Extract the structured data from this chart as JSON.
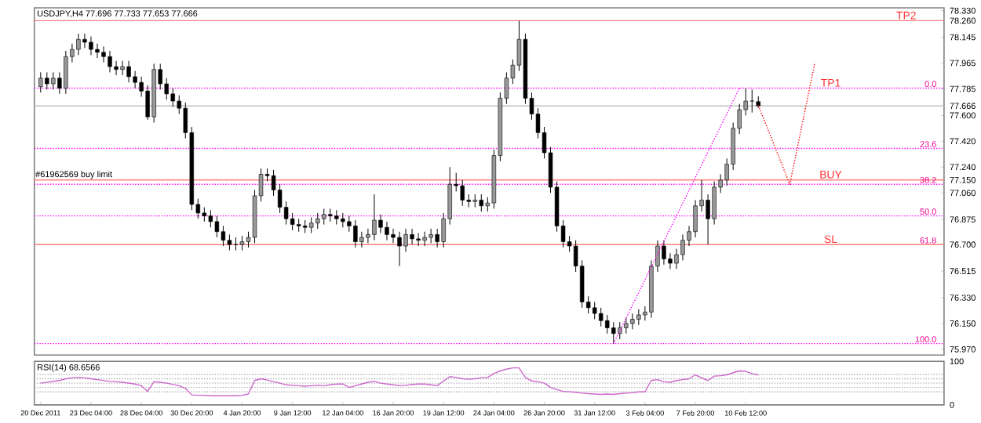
{
  "chart_data": [
    {
      "type": "candlestick",
      "title": "USDJPY,H4 77.696 77.733 77.653 77.666",
      "tick_labels": "y",
      "color": "#000000",
      "categories": [
        null,
        null,
        null,
        null,
        null,
        null,
        null,
        null,
        null,
        null,
        null,
        null,
        null,
        null,
        null,
        null,
        null,
        null,
        null,
        null,
        null,
        null,
        null,
        null,
        null,
        null,
        null,
        null,
        null,
        null,
        null,
        null,
        null,
        null,
        null,
        null,
        null,
        null,
        null,
        null,
        null,
        null,
        null,
        null,
        null,
        null,
        null,
        null,
        null,
        null,
        null,
        null,
        null,
        null,
        null,
        null,
        null,
        null,
        null,
        null,
        null,
        null,
        null,
        null,
        null,
        null,
        null,
        null,
        null,
        null,
        null,
        null,
        null,
        null,
        null,
        null,
        null,
        null,
        null,
        null,
        null,
        null,
        null,
        null,
        null,
        null,
        null,
        null,
        null,
        null,
        null,
        null,
        null,
        null,
        null,
        null,
        null,
        null,
        null,
        null,
        null,
        null,
        null,
        null,
        null,
        null,
        null,
        null,
        null,
        null,
        null,
        null,
        null,
        null,
        null,
        null,
        null,
        null,
        null,
        null,
        null,
        null,
        null,
        null,
        null,
        null,
        null,
        null,
        null,
        null,
        null,
        null,
        null,
        null,
        null,
        null,
        null,
        null,
        null,
        null,
        null,
        null,
        null,
        null
      ],
      "ohlc": [
        [
          77.8,
          77.9,
          77.76,
          77.86
        ],
        [
          77.86,
          77.9,
          77.78,
          77.82
        ],
        [
          77.82,
          77.9,
          77.78,
          77.86
        ],
        [
          77.86,
          77.9,
          77.75,
          77.79
        ],
        [
          77.79,
          78.05,
          77.75,
          78.01
        ],
        [
          78.01,
          78.1,
          77.97,
          78.06
        ],
        [
          78.06,
          78.17,
          78.02,
          78.13
        ],
        [
          78.13,
          78.17,
          78.07,
          78.11
        ],
        [
          78.11,
          78.15,
          78.02,
          78.06
        ],
        [
          78.06,
          78.1,
          78.0,
          78.04
        ],
        [
          78.04,
          78.08,
          77.97,
          78.01
        ],
        [
          78.01,
          78.05,
          77.9,
          77.94
        ],
        [
          77.94,
          77.98,
          77.88,
          77.92
        ],
        [
          77.92,
          77.98,
          77.88,
          77.94
        ],
        [
          77.94,
          77.98,
          77.83,
          77.87
        ],
        [
          77.87,
          77.91,
          77.79,
          77.83
        ],
        [
          77.83,
          77.87,
          77.73,
          77.77
        ],
        [
          77.77,
          77.81,
          77.57,
          77.59
        ],
        [
          77.59,
          77.96,
          77.55,
          77.92
        ],
        [
          77.92,
          77.96,
          77.78,
          77.82
        ],
        [
          77.82,
          77.86,
          77.71,
          77.75
        ],
        [
          77.75,
          77.79,
          77.66,
          77.7
        ],
        [
          77.7,
          77.74,
          77.61,
          77.65
        ],
        [
          77.65,
          77.69,
          77.44,
          77.48
        ],
        [
          77.48,
          77.52,
          76.94,
          76.98
        ],
        [
          76.98,
          77.02,
          76.88,
          76.92
        ],
        [
          76.92,
          76.96,
          76.86,
          76.9
        ],
        [
          76.9,
          76.94,
          76.82,
          76.86
        ],
        [
          76.86,
          76.9,
          76.75,
          76.79
        ],
        [
          76.79,
          76.83,
          76.69,
          76.73
        ],
        [
          76.73,
          76.77,
          76.66,
          76.7
        ],
        [
          76.7,
          76.75,
          76.66,
          76.7
        ],
        [
          76.7,
          76.76,
          76.66,
          76.72
        ],
        [
          76.72,
          76.79,
          76.68,
          76.75
        ],
        [
          76.75,
          77.08,
          76.71,
          77.04
        ],
        [
          77.04,
          77.23,
          77.0,
          77.19
        ],
        [
          77.19,
          77.23,
          77.14,
          77.18
        ],
        [
          77.18,
          77.22,
          77.04,
          77.08
        ],
        [
          77.08,
          77.12,
          76.92,
          76.96
        ],
        [
          76.96,
          77.0,
          76.84,
          76.88
        ],
        [
          76.88,
          76.92,
          76.8,
          76.84
        ],
        [
          76.84,
          76.88,
          76.79,
          76.83
        ],
        [
          76.83,
          76.87,
          76.78,
          76.82
        ],
        [
          76.82,
          76.89,
          76.78,
          76.85
        ],
        [
          76.85,
          76.92,
          76.81,
          76.88
        ],
        [
          76.88,
          76.95,
          76.84,
          76.91
        ],
        [
          76.91,
          76.95,
          76.86,
          76.9
        ],
        [
          76.9,
          76.94,
          76.84,
          76.88
        ],
        [
          76.88,
          76.92,
          76.82,
          76.86
        ],
        [
          76.86,
          76.9,
          76.79,
          76.83
        ],
        [
          76.83,
          76.87,
          76.68,
          76.72
        ],
        [
          76.72,
          76.79,
          76.68,
          76.75
        ],
        [
          76.75,
          76.81,
          76.71,
          76.77
        ],
        [
          76.77,
          77.05,
          76.73,
          76.87
        ],
        [
          76.87,
          76.91,
          76.78,
          76.82
        ],
        [
          76.82,
          76.86,
          76.73,
          76.77
        ],
        [
          76.77,
          76.81,
          76.71,
          76.75
        ],
        [
          76.75,
          76.79,
          76.55,
          76.69
        ],
        [
          76.69,
          76.81,
          76.65,
          76.77
        ],
        [
          76.77,
          76.81,
          76.7,
          76.74
        ],
        [
          76.74,
          76.78,
          76.69,
          76.73
        ],
        [
          76.73,
          76.79,
          76.69,
          76.75
        ],
        [
          76.75,
          76.81,
          76.71,
          76.77
        ],
        [
          76.77,
          76.81,
          76.68,
          76.72
        ],
        [
          76.72,
          76.92,
          76.68,
          76.88
        ],
        [
          76.88,
          77.24,
          76.84,
          77.12
        ],
        [
          77.12,
          77.2,
          77.07,
          77.11
        ],
        [
          77.11,
          77.15,
          76.97,
          77.01
        ],
        [
          77.01,
          77.05,
          76.96,
          77.0
        ],
        [
          77.0,
          77.05,
          76.96,
          77.01
        ],
        [
          77.01,
          77.05,
          76.93,
          76.97
        ],
        [
          76.97,
          77.03,
          76.93,
          76.99
        ],
        [
          76.99,
          77.36,
          76.95,
          77.32
        ],
        [
          77.32,
          77.76,
          77.28,
          77.72
        ],
        [
          77.72,
          77.9,
          77.68,
          77.86
        ],
        [
          77.86,
          77.99,
          77.82,
          77.95
        ],
        [
          77.95,
          78.26,
          77.91,
          78.13
        ],
        [
          78.13,
          78.17,
          77.68,
          77.72
        ],
        [
          77.72,
          77.76,
          77.57,
          77.61
        ],
        [
          77.61,
          77.65,
          77.44,
          77.48
        ],
        [
          77.48,
          77.52,
          77.3,
          77.34
        ],
        [
          77.34,
          77.38,
          77.06,
          77.1
        ],
        [
          77.1,
          77.14,
          76.79,
          76.83
        ],
        [
          76.83,
          76.87,
          76.68,
          76.72
        ],
        [
          76.72,
          76.76,
          76.65,
          76.69
        ],
        [
          76.69,
          76.73,
          76.51,
          76.55
        ],
        [
          76.55,
          76.59,
          76.26,
          76.3
        ],
        [
          76.3,
          76.34,
          76.22,
          76.26
        ],
        [
          76.26,
          76.3,
          76.18,
          76.22
        ],
        [
          76.22,
          76.26,
          76.13,
          76.17
        ],
        [
          76.17,
          76.21,
          76.08,
          76.12
        ],
        [
          76.12,
          76.16,
          76.01,
          76.08
        ],
        [
          76.08,
          76.16,
          76.04,
          76.12
        ],
        [
          76.12,
          76.19,
          76.08,
          76.15
        ],
        [
          76.15,
          76.22,
          76.11,
          76.18
        ],
        [
          76.18,
          76.25,
          76.14,
          76.21
        ],
        [
          76.21,
          76.27,
          76.17,
          76.23
        ],
        [
          76.23,
          76.59,
          76.19,
          76.55
        ],
        [
          76.55,
          76.73,
          76.51,
          76.69
        ],
        [
          76.69,
          76.73,
          76.56,
          76.6
        ],
        [
          76.6,
          76.64,
          76.53,
          76.57
        ],
        [
          76.57,
          76.67,
          76.53,
          76.63
        ],
        [
          76.63,
          76.77,
          76.59,
          76.73
        ],
        [
          76.73,
          76.83,
          76.69,
          76.79
        ],
        [
          76.79,
          77.01,
          76.75,
          76.97
        ],
        [
          76.97,
          77.15,
          76.93,
          77.01
        ],
        [
          77.01,
          77.05,
          76.7,
          76.88
        ],
        [
          76.88,
          77.14,
          76.84,
          77.1
        ],
        [
          77.1,
          77.19,
          77.06,
          77.15
        ],
        [
          77.15,
          77.3,
          77.11,
          77.26
        ],
        [
          77.26,
          77.55,
          77.22,
          77.51
        ],
        [
          77.51,
          77.68,
          77.47,
          77.64
        ],
        [
          77.64,
          77.79,
          77.6,
          77.7
        ],
        [
          77.7,
          77.78,
          77.62,
          77.7
        ],
        [
          77.696,
          77.733,
          77.653,
          77.666
        ],
        null,
        null,
        null,
        null,
        null,
        null,
        null,
        null,
        null,
        null,
        null,
        null,
        null,
        null,
        null,
        null,
        null,
        null,
        null,
        null,
        null,
        null,
        null,
        null,
        null,
        null,
        null,
        null,
        null
      ],
      "ylim": [
        75.93,
        78.35
      ],
      "yticks": [
        {
          "value": 75.97,
          "label": "75.970"
        },
        {
          "value": 76.15,
          "label": "76.150"
        },
        {
          "value": 76.33,
          "label": "76.330"
        },
        {
          "value": 76.515,
          "label": "76.515"
        },
        {
          "value": 76.7,
          "label": "76.700"
        },
        {
          "value": 76.875,
          "label": "76.875"
        },
        {
          "value": 77.06,
          "label": "77.060"
        },
        {
          "value": 77.15,
          "label": "77.150"
        },
        {
          "value": 77.24,
          "label": "77.240"
        },
        {
          "value": 77.42,
          "label": "77.420"
        },
        {
          "value": 77.6,
          "label": "77.600"
        },
        {
          "value": 77.666,
          "label": "77.666"
        },
        {
          "value": 77.785,
          "label": "77.785"
        },
        {
          "value": 77.965,
          "label": "77.965"
        },
        {
          "value": 78.145,
          "label": "78.145"
        },
        {
          "value": 78.26,
          "label": "78.260"
        },
        {
          "value": 78.33,
          "label": "78.330"
        }
      ],
      "ref_lines": [
        {
          "axis": "y",
          "value": 78.26,
          "color": "#ff8080"
        },
        {
          "axis": "y",
          "value": 77.15,
          "label": "#61962569 buy limit",
          "color": "#ff8080"
        },
        {
          "axis": "y",
          "value": 76.7,
          "color": "#ff8080"
        },
        {
          "axis": "y",
          "value": 77.666,
          "color": "#c0c0c0"
        },
        {
          "axis": "y",
          "value": 77.79,
          "color": "#ff00ff",
          "line_style": "dotted"
        },
        {
          "axis": "y",
          "value": 77.37,
          "color": "#ff00ff",
          "line_style": "dotted"
        },
        {
          "axis": "y",
          "value": 77.12,
          "color": "#ff00ff",
          "line_style": "dotted"
        },
        {
          "axis": "y",
          "value": 76.9,
          "color": "#ff00ff",
          "line_style": "dotted"
        },
        {
          "axis": "y",
          "value": 76.01,
          "color": "#ff00ff",
          "line_style": "dotted"
        }
      ],
      "annotations": [
        {
          "text": "TP2",
          "y": 78.26
        },
        {
          "text": "TP1",
          "y": 77.79
        },
        {
          "text": "BUY",
          "y": 77.15
        },
        {
          "text": "SL",
          "y": 76.7
        },
        {
          "text": "0.0",
          "y": 77.79
        },
        {
          "text": "23.6",
          "y": 77.37
        },
        {
          "text": "38.2",
          "y": 77.12
        },
        {
          "text": "50.0",
          "y": 76.9
        },
        {
          "text": "61.8",
          "y": 76.7
        },
        {
          "text": "100.0",
          "y": 76.01
        }
      ],
      "series": [
        {
          "type": "line",
          "values": [
            null,
            null,
            null,
            null,
            null,
            null,
            null,
            null,
            null,
            null,
            null,
            null,
            null,
            null,
            null,
            null,
            null,
            null,
            null,
            null,
            null,
            null,
            null,
            null,
            null,
            null,
            null,
            null,
            null,
            null,
            null,
            null,
            null,
            null,
            null,
            null,
            null,
            null,
            null,
            null,
            null,
            null,
            null,
            null,
            null,
            null,
            null,
            null,
            null,
            null,
            null,
            null,
            null,
            null,
            null,
            null,
            null,
            null,
            null,
            null,
            null,
            null,
            null,
            null,
            null,
            null,
            null,
            null,
            null,
            null,
            null,
            null,
            null,
            null,
            null,
            null,
            null,
            null,
            null,
            null,
            null,
            null,
            null,
            null,
            null,
            null,
            null,
            null,
            null,
            null,
            null,
            76.01,
            null,
            null,
            null,
            null,
            null,
            null,
            null,
            null,
            null,
            null,
            null,
            null,
            null,
            null,
            null,
            null,
            null,
            null,
            null,
            77.79,
            null,
            null,
            null,
            null,
            null,
            null,
            null,
            null,
            null,
            null,
            null,
            null,
            null,
            null,
            null,
            null,
            null,
            null,
            null,
            null,
            null,
            null,
            null,
            null,
            null,
            null,
            null,
            null,
            null,
            null,
            null,
            null
          ],
          "color": "#ff00ff",
          "line_style": "dotted"
        },
        {
          "type": "line",
          "values": [
            null,
            null,
            null,
            null,
            null,
            null,
            null,
            null,
            null,
            null,
            null,
            null,
            null,
            null,
            null,
            null,
            null,
            null,
            null,
            null,
            null,
            null,
            null,
            null,
            null,
            null,
            null,
            null,
            null,
            null,
            null,
            null,
            null,
            null,
            null,
            null,
            null,
            null,
            null,
            null,
            null,
            null,
            null,
            null,
            null,
            null,
            null,
            null,
            null,
            null,
            null,
            null,
            null,
            null,
            null,
            null,
            null,
            null,
            null,
            null,
            null,
            null,
            null,
            null,
            null,
            null,
            null,
            null,
            null,
            null,
            null,
            null,
            null,
            null,
            null,
            null,
            null,
            null,
            null,
            null,
            null,
            null,
            null,
            null,
            null,
            null,
            null,
            null,
            null,
            null,
            null,
            null,
            null,
            null,
            null,
            null,
            null,
            null,
            null,
            null,
            null,
            null,
            null,
            null,
            null,
            null,
            null,
            null,
            null,
            null,
            null,
            null,
            null,
            null,
            77.67,
            null,
            null,
            null,
            null,
            77.12,
            null,
            null,
            null,
            77.97,
            null,
            null,
            null,
            null,
            null,
            null,
            null,
            null,
            null,
            null,
            null,
            null,
            null,
            null,
            null,
            null,
            null,
            null,
            null,
            null
          ],
          "color": "#ff0000",
          "line_style": "dotted"
        }
      ]
    },
    {
      "type": "line",
      "title": "RSI(14) 68.6566",
      "categories": [
        "20 Dec 2011",
        null,
        null,
        null,
        null,
        null,
        null,
        null,
        "23 Dec 04:00",
        null,
        null,
        null,
        null,
        null,
        null,
        null,
        "28 Dec 04:00",
        null,
        null,
        null,
        null,
        null,
        null,
        null,
        "30 Dec 20:00",
        null,
        null,
        null,
        null,
        null,
        null,
        null,
        "4 Jan 20:00",
        null,
        null,
        null,
        null,
        null,
        null,
        null,
        "9 Jan 12:00",
        null,
        null,
        null,
        null,
        null,
        null,
        null,
        "12 Jan 04:00",
        null,
        null,
        null,
        null,
        null,
        null,
        null,
        "16 Jan 20:00",
        null,
        null,
        null,
        null,
        null,
        null,
        null,
        "19 Jan 12:00",
        null,
        null,
        null,
        null,
        null,
        null,
        null,
        "24 Jan 04:00",
        null,
        null,
        null,
        null,
        null,
        null,
        null,
        "26 Jan 20:00",
        null,
        null,
        null,
        null,
        null,
        null,
        null,
        "31 Jan 12:00",
        null,
        null,
        null,
        null,
        null,
        null,
        null,
        "3 Feb 04:00",
        null,
        null,
        null,
        null,
        null,
        null,
        null,
        "7 Feb 20:00",
        null,
        null,
        null,
        null,
        null,
        null,
        null,
        "10 Feb 12:00",
        null,
        null,
        null,
        null,
        null,
        null,
        null,
        null,
        null,
        null,
        null,
        null,
        null,
        null,
        null,
        null,
        null,
        null,
        null,
        null,
        null,
        null,
        null,
        null,
        null,
        null,
        null,
        null,
        null,
        null,
        null
      ],
      "series": [
        {
          "color": "#cc66cc",
          "values": [
            50,
            52,
            54,
            56,
            60,
            62,
            63,
            62,
            60,
            58,
            56,
            54,
            53,
            52,
            50,
            48,
            44,
            31,
            53,
            52,
            50,
            47,
            44,
            38,
            23,
            22,
            22,
            21,
            21,
            21,
            21,
            21,
            22,
            25,
            56,
            60,
            57,
            53,
            50,
            46,
            45,
            44,
            43,
            44,
            45,
            44,
            46,
            48,
            48,
            40,
            44,
            48,
            52,
            54,
            50,
            48,
            46,
            44,
            45,
            47,
            48,
            48,
            46,
            44,
            55,
            65,
            63,
            60,
            59,
            60,
            62,
            63,
            72,
            78,
            82,
            85,
            85,
            63,
            55,
            53,
            50,
            40,
            35,
            31,
            30,
            29,
            27,
            26,
            25,
            24,
            25,
            24,
            26,
            27,
            28,
            30,
            30,
            56,
            58,
            53,
            52,
            56,
            58,
            60,
            69,
            62,
            56,
            66,
            67,
            69,
            74,
            78,
            77,
            72,
            68.66,
            null,
            null,
            null,
            null,
            null,
            null,
            null,
            null,
            null,
            null,
            null,
            null,
            null,
            null,
            null,
            null,
            null,
            null,
            null,
            null,
            null,
            null,
            null,
            null,
            null,
            null,
            null,
            null,
            null
          ]
        }
      ],
      "ylim": [
        0,
        100
      ],
      "yticks": [
        0,
        100
      ],
      "ref_lines": [
        {
          "axis": "y",
          "value": 30,
          "color": "#b0b0b0",
          "line_style": "dotted"
        },
        {
          "axis": "y",
          "value": 40,
          "color": "#b0b0b0",
          "line_style": "dotted"
        },
        {
          "axis": "y",
          "value": 50,
          "color": "#b0b0b0",
          "line_style": "dotted"
        },
        {
          "axis": "y",
          "value": 60,
          "color": "#b0b0b0",
          "line_style": "dotted"
        },
        {
          "axis": "y",
          "value": 70,
          "color": "#b0b0b0",
          "line_style": "dotted"
        }
      ]
    }
  ]
}
